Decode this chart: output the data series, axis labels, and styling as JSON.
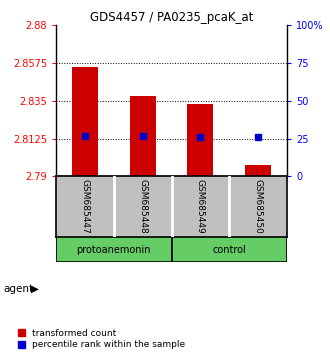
{
  "title": "GDS4457 / PA0235_pcaK_at",
  "samples": [
    "GSM685447",
    "GSM685448",
    "GSM685449",
    "GSM685450"
  ],
  "groups": [
    "protoanemonin",
    "protoanemonin",
    "control",
    "control"
  ],
  "bar_values": [
    2.855,
    2.838,
    2.833,
    2.797
  ],
  "bar_baseline": 2.79,
  "bar_color": "#CC0000",
  "percentile_values": [
    27,
    27,
    26,
    26
  ],
  "percentile_color": "#0000CC",
  "ylim_left": [
    2.79,
    2.88
  ],
  "ylim_right": [
    0,
    100
  ],
  "yticks_left": [
    2.79,
    2.8125,
    2.835,
    2.8575,
    2.88
  ],
  "ytick_labels_left": [
    "2.79",
    "2.8125",
    "2.835",
    "2.8575",
    "2.88"
  ],
  "yticks_right": [
    0,
    25,
    50,
    75,
    100
  ],
  "ytick_labels_right": [
    "0",
    "25",
    "50",
    "75",
    "100%"
  ],
  "hlines": [
    2.8125,
    2.835,
    2.8575
  ],
  "legend_colors": [
    "#CC0000",
    "#0000CC"
  ],
  "legend_items": [
    "transformed count",
    "percentile rank within the sample"
  ],
  "green_color": "#66CC66",
  "gray_color": "#C0C0C0",
  "background_color": "#ffffff"
}
